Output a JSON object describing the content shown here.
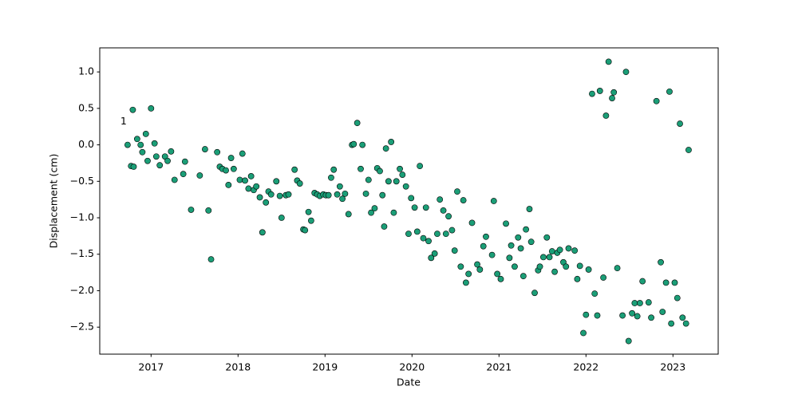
{
  "chart_data": {
    "type": "scatter",
    "xlabel": "Date",
    "ylabel": "Displacement (cm)",
    "annotation": "1",
    "color": "#1b9e77",
    "edgecolor": "#000000",
    "grid": false,
    "xlim": [
      2016.41,
      2023.52
    ],
    "ylim": [
      -2.87,
      1.33
    ],
    "xticks": [
      2017,
      2018,
      2019,
      2020,
      2021,
      2022,
      2023
    ],
    "yticks": [
      {
        "value": -2.5,
        "label": "−2.5"
      },
      {
        "value": -2,
        "label": "−2.0"
      },
      {
        "value": -1.5,
        "label": "−1.5"
      },
      {
        "value": -1,
        "label": "−1.0"
      },
      {
        "value": -0.5,
        "label": "−0.5"
      },
      {
        "value": 0,
        "label": "0.0"
      },
      0.5,
      {
        "value": 1,
        "label": "1.0"
      }
    ],
    "x": [
      2016.73,
      2016.77,
      2016.8,
      2016.79,
      2016.84,
      2016.88,
      2016.9,
      2016.94,
      2016.96,
      2017.0,
      2017.04,
      2017.06,
      2017.1,
      2017.16,
      2017.19,
      2017.23,
      2017.27,
      2017.37,
      2017.39,
      2017.46,
      2017.56,
      2017.62,
      2017.66,
      2017.69,
      2017.76,
      2017.79,
      2017.82,
      2017.86,
      2017.89,
      2017.92,
      2017.95,
      2018.02,
      2018.05,
      2018.08,
      2018.12,
      2018.15,
      2018.18,
      2018.21,
      2018.25,
      2018.28,
      2018.32,
      2018.35,
      2018.38,
      2018.44,
      2018.48,
      2018.5,
      2018.55,
      2018.58,
      2018.65,
      2018.68,
      2018.71,
      2018.75,
      2018.77,
      2018.81,
      2018.84,
      2018.88,
      2018.91,
      2018.94,
      2018.98,
      2019.01,
      2019.04,
      2019.07,
      2019.1,
      2019.14,
      2019.17,
      2019.2,
      2019.23,
      2019.27,
      2019.31,
      2019.33,
      2019.37,
      2019.41,
      2019.43,
      2019.47,
      2019.5,
      2019.53,
      2019.57,
      2019.6,
      2019.63,
      2019.66,
      2019.68,
      2019.7,
      2019.73,
      2019.76,
      2019.79,
      2019.82,
      2019.86,
      2019.89,
      2019.93,
      2019.96,
      2019.99,
      2020.03,
      2020.06,
      2020.09,
      2020.13,
      2020.16,
      2020.19,
      2020.22,
      2020.26,
      2020.29,
      2020.32,
      2020.36,
      2020.39,
      2020.42,
      2020.46,
      2020.49,
      2020.52,
      2020.56,
      2020.59,
      2020.62,
      2020.65,
      2020.69,
      2020.75,
      2020.78,
      2020.82,
      2020.85,
      2020.92,
      2020.94,
      2020.98,
      2021.02,
      2021.08,
      2021.12,
      2021.14,
      2021.18,
      2021.22,
      2021.25,
      2021.28,
      2021.31,
      2021.35,
      2021.37,
      2021.41,
      2021.45,
      2021.47,
      2021.51,
      2021.55,
      2021.58,
      2021.61,
      2021.64,
      2021.67,
      2021.7,
      2021.74,
      2021.77,
      2021.8,
      2021.87,
      2021.9,
      2021.93,
      2021.97,
      2022.0,
      2022.03,
      2022.07,
      2022.1,
      2022.13,
      2022.16,
      2022.2,
      2022.23,
      2022.26,
      2022.3,
      2022.32,
      2022.36,
      2022.42,
      2022.46,
      2022.49,
      2022.53,
      2022.56,
      2022.59,
      2022.62,
      2022.65,
      2022.72,
      2022.75,
      2022.81,
      2022.86,
      2022.88,
      2022.92,
      2022.96,
      2022.98,
      2023.02,
      2023.05,
      2023.08,
      2023.11,
      2023.15,
      2023.18
    ],
    "values": [
      0.0,
      -0.29,
      -0.3,
      0.48,
      0.08,
      0.0,
      -0.1,
      0.15,
      -0.22,
      0.5,
      0.02,
      -0.16,
      -0.28,
      -0.16,
      -0.22,
      -0.09,
      -0.48,
      -0.4,
      -0.23,
      -0.89,
      -0.42,
      -0.06,
      -0.9,
      -1.57,
      -0.1,
      -0.3,
      -0.33,
      -0.35,
      -0.55,
      -0.18,
      -0.33,
      -0.48,
      -0.12,
      -0.49,
      -0.6,
      -0.43,
      -0.62,
      -0.57,
      -0.72,
      -1.2,
      -0.79,
      -0.64,
      -0.68,
      -0.5,
      -0.7,
      -1.0,
      -0.69,
      -0.68,
      -0.34,
      -0.49,
      -0.53,
      -1.16,
      -1.17,
      -0.92,
      -1.04,
      -0.66,
      -0.68,
      -0.7,
      -0.68,
      -0.69,
      -0.69,
      -0.45,
      -0.34,
      -0.68,
      -0.57,
      -0.74,
      -0.67,
      -0.95,
      0.0,
      0.01,
      0.3,
      -0.33,
      0.0,
      -0.67,
      -0.48,
      -0.93,
      -0.87,
      -0.32,
      -0.36,
      -0.69,
      -1.12,
      -0.05,
      -0.5,
      0.04,
      -0.93,
      -0.5,
      -0.33,
      -0.41,
      -0.57,
      -1.22,
      -0.73,
      -0.86,
      -1.19,
      -0.29,
      -1.28,
      -0.86,
      -1.32,
      -1.55,
      -1.49,
      -1.22,
      -0.75,
      -0.9,
      -1.22,
      -0.98,
      -1.17,
      -1.45,
      -0.64,
      -1.67,
      -0.76,
      -1.89,
      -1.77,
      -1.07,
      -1.64,
      -1.71,
      -1.39,
      -1.26,
      -1.51,
      -0.77,
      -1.77,
      -1.84,
      -1.08,
      -1.55,
      -1.38,
      -1.67,
      -1.27,
      -1.42,
      -1.8,
      -1.16,
      -0.88,
      -1.33,
      -2.03,
      -1.72,
      -1.67,
      -1.54,
      -1.27,
      -1.54,
      -1.46,
      -1.74,
      -1.48,
      -1.44,
      -1.61,
      -1.67,
      -1.42,
      -1.45,
      -1.84,
      -1.66,
      -2.58,
      -2.33,
      -1.71,
      0.7,
      -2.04,
      -2.34,
      0.74,
      -1.82,
      0.4,
      1.14,
      0.64,
      0.72,
      -1.69,
      -2.34,
      1.0,
      -2.69,
      -2.31,
      -2.17,
      -2.35,
      -2.17,
      -1.87,
      -2.16,
      -2.37,
      0.6,
      -1.61,
      -2.29,
      -1.89,
      0.73,
      -2.45,
      -1.89,
      -2.1,
      0.29,
      -2.37,
      -2.45,
      -0.07
    ]
  }
}
